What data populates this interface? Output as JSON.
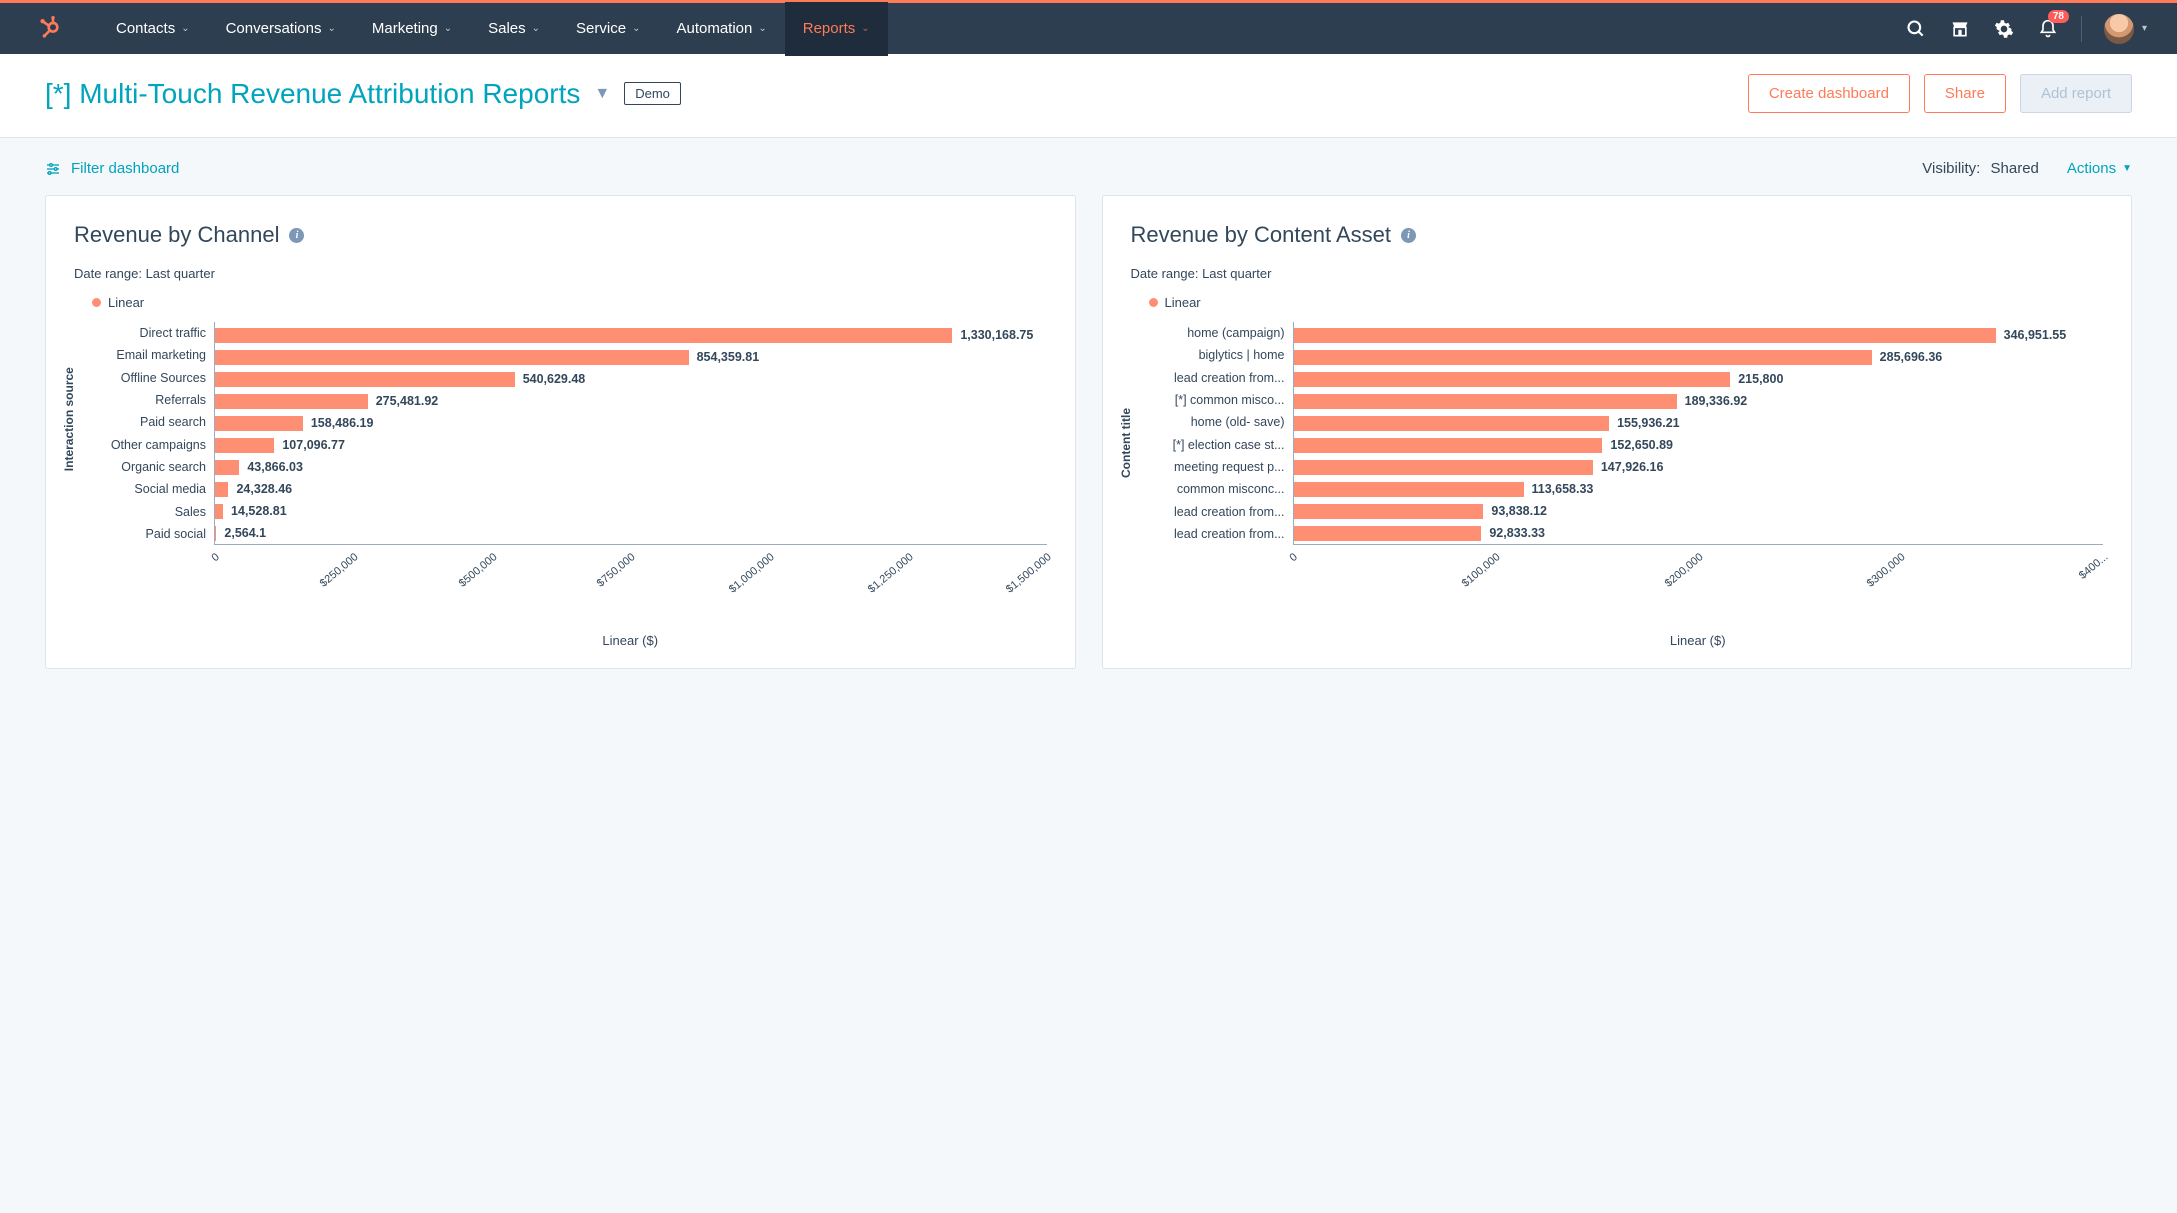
{
  "nav": {
    "items": [
      {
        "label": "Contacts",
        "active": false
      },
      {
        "label": "Conversations",
        "active": false
      },
      {
        "label": "Marketing",
        "active": false
      },
      {
        "label": "Sales",
        "active": false
      },
      {
        "label": "Service",
        "active": false
      },
      {
        "label": "Automation",
        "active": false
      },
      {
        "label": "Reports",
        "active": true
      }
    ],
    "notification_count": "78"
  },
  "header": {
    "title": "[*] Multi-Touch Revenue Attribution Reports",
    "badge": "Demo",
    "buttons": {
      "create": "Create dashboard",
      "share": "Share",
      "add": "Add report"
    }
  },
  "subbar": {
    "filter": "Filter dashboard",
    "visibility_label": "Visibility:",
    "visibility_value": "Shared",
    "actions": "Actions"
  },
  "charts": {
    "left": {
      "title": "Revenue by Channel",
      "date_range_label": "Date range:",
      "date_range_value": "Last quarter",
      "legend": "Linear",
      "type": "horizontal-bar",
      "bar_color": "#ff8f73",
      "y_axis_title": "Interaction source",
      "x_axis_title": "Linear ($)",
      "x_max": 1500000,
      "x_ticks": [
        "0",
        "$250,000",
        "$500,000",
        "$750,000",
        "$1,000,000",
        "$1,250,000",
        "$1,500,000"
      ],
      "rows": [
        {
          "label": "Direct traffic",
          "value": 1330168.75,
          "label_fmt": "1,330,168.75"
        },
        {
          "label": "Email marketing",
          "value": 854359.81,
          "label_fmt": "854,359.81"
        },
        {
          "label": "Offline Sources",
          "value": 540629.48,
          "label_fmt": "540,629.48"
        },
        {
          "label": "Referrals",
          "value": 275481.92,
          "label_fmt": "275,481.92"
        },
        {
          "label": "Paid search",
          "value": 158486.19,
          "label_fmt": "158,486.19"
        },
        {
          "label": "Other campaigns",
          "value": 107096.77,
          "label_fmt": "107,096.77"
        },
        {
          "label": "Organic search",
          "value": 43866.03,
          "label_fmt": "43,866.03"
        },
        {
          "label": "Social media",
          "value": 24328.46,
          "label_fmt": "24,328.46"
        },
        {
          "label": "Sales",
          "value": 14528.81,
          "label_fmt": "14,528.81"
        },
        {
          "label": "Paid social",
          "value": 2564.1,
          "label_fmt": "2,564.1"
        }
      ]
    },
    "right": {
      "title": "Revenue by Content Asset",
      "date_range_label": "Date range:",
      "date_range_value": "Last quarter",
      "legend": "Linear",
      "type": "horizontal-bar",
      "bar_color": "#ff8f73",
      "y_axis_title": "Content title",
      "x_axis_title": "Linear ($)",
      "x_max": 400000,
      "x_ticks": [
        "0",
        "$100,000",
        "$200,000",
        "$300,000",
        "$400..."
      ],
      "rows": [
        {
          "label": "home (campaign)",
          "value": 346951.55,
          "label_fmt": "346,951.55"
        },
        {
          "label": "biglytics | home",
          "value": 285696.36,
          "label_fmt": "285,696.36"
        },
        {
          "label": "lead creation from...",
          "value": 215800,
          "label_fmt": "215,800"
        },
        {
          "label": "[*] common misco...",
          "value": 189336.92,
          "label_fmt": "189,336.92"
        },
        {
          "label": "home (old- save)",
          "value": 155936.21,
          "label_fmt": "155,936.21"
        },
        {
          "label": "[*] election case st...",
          "value": 152650.89,
          "label_fmt": "152,650.89"
        },
        {
          "label": "meeting request p...",
          "value": 147926.16,
          "label_fmt": "147,926.16"
        },
        {
          "label": "common misconc...",
          "value": 113658.33,
          "label_fmt": "113,658.33"
        },
        {
          "label": "lead creation from...",
          "value": 93838.12,
          "label_fmt": "93,838.12"
        },
        {
          "label": "lead creation from...",
          "value": 92833.33,
          "label_fmt": "92,833.33"
        }
      ]
    }
  }
}
